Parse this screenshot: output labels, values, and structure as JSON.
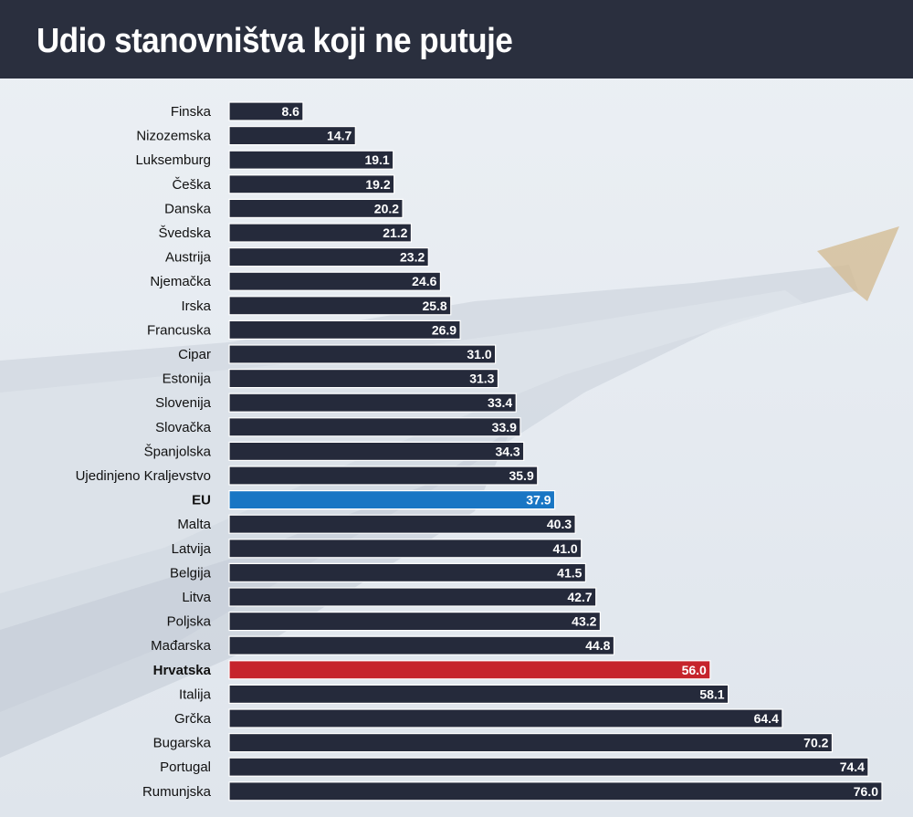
{
  "title": "Udio stanovništva koji ne putuje",
  "colors": {
    "header_bg": "#2a2f3e",
    "bar_default": "#252a3b",
    "bar_eu": "#1976c4",
    "bar_croatia": "#c6242c",
    "bar_outline": "#ffffff"
  },
  "chart_data": {
    "type": "bar",
    "orientation": "horizontal",
    "title": "Udio stanovništva koji ne putuje",
    "xlabel": "",
    "ylabel": "",
    "xlim": [
      0,
      76.0
    ],
    "grid": false,
    "legend": "none",
    "categories": [
      "Finska",
      "Nizozemska",
      "Luksemburg",
      "Češka",
      "Danska",
      "Švedska",
      "Austrija",
      "Njemačka",
      "Irska",
      "Francuska",
      "Cipar",
      "Estonija",
      "Slovenija",
      "Slovačka",
      "Španjolska",
      "Ujedinjeno Kraljevstvo",
      "EU",
      "Malta",
      "Latvija",
      "Belgija",
      "Litva",
      "Poljska",
      "Mađarska",
      "Hrvatska",
      "Italija",
      "Grčka",
      "Bugarska",
      "Portugal",
      "Rumunjska"
    ],
    "values": [
      8.6,
      14.7,
      19.1,
      19.2,
      20.2,
      21.2,
      23.2,
      24.6,
      25.8,
      26.9,
      31.0,
      31.3,
      33.4,
      33.9,
      34.3,
      35.9,
      37.9,
      40.3,
      41.0,
      41.5,
      42.7,
      43.2,
      44.8,
      56.0,
      58.1,
      64.4,
      70.2,
      74.4,
      76.0
    ],
    "value_labels": [
      "8.6",
      "14.7",
      "19.1",
      "19.2",
      "20.2",
      "21.2",
      "23.2",
      "24.6",
      "25.8",
      "26.9",
      "31.0",
      "31.3",
      "33.4",
      "33.9",
      "34.3",
      "35.9",
      "37.9",
      "40.3",
      "41.0",
      "41.5",
      "42.7",
      "43.2",
      "44.8",
      "56.0",
      "58.1",
      "64.4",
      "70.2",
      "74.4",
      "76.0"
    ],
    "highlights": {
      "EU": "#1976c4",
      "Hrvatska": "#c6242c"
    },
    "bold_categories": [
      "EU",
      "Hrvatska"
    ]
  }
}
